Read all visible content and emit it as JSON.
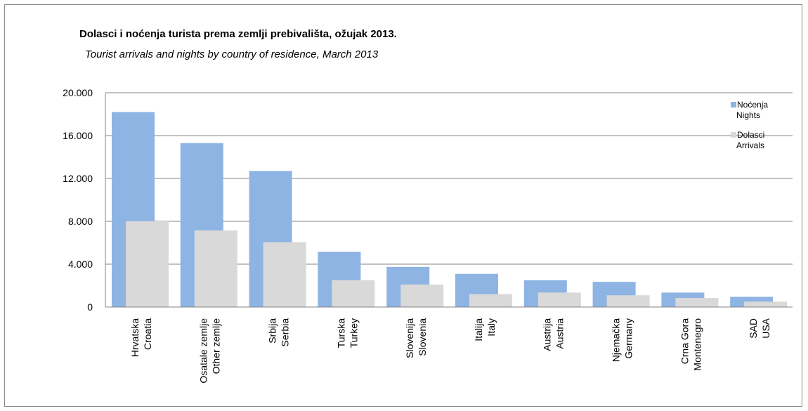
{
  "chart_data": {
    "type": "bar",
    "title": "Dolasci i noćenja turista prema zemlji prebivališta,  ožujak 2013.",
    "subtitle": "Tourist arrivals and nights by country of residence,  March 2013",
    "categories": [
      [
        "Hrvatska",
        "Croatia"
      ],
      [
        "Osatale zemlje",
        "Other zemlje"
      ],
      [
        "Srbija",
        "Serbia"
      ],
      [
        "Turska",
        "Turkey"
      ],
      [
        "Slovenija",
        "Slovenia"
      ],
      [
        "Italija",
        "Italy"
      ],
      [
        "Austrija",
        "Austria"
      ],
      [
        "Njemačka",
        "Germany"
      ],
      [
        "Crna Gora",
        "Montenegro"
      ],
      [
        "SAD",
        "USA"
      ]
    ],
    "series": [
      {
        "name": [
          "Noćenja",
          "Nights"
        ],
        "color": "#8eb4e3",
        "values": [
          18200,
          15300,
          12700,
          5150,
          3750,
          3100,
          2500,
          2350,
          1350,
          950
        ]
      },
      {
        "name": [
          "Dolasci",
          "Arrivals"
        ],
        "color": "#d9d9d9",
        "values": [
          8000,
          7150,
          6050,
          2500,
          2100,
          1200,
          1350,
          1100,
          850,
          500
        ]
      }
    ],
    "ylim": [
      0,
      20000
    ],
    "yticks": [
      "0",
      "4.000",
      "8.000",
      "12.000",
      "16.000",
      "20.000"
    ],
    "ytick_values": [
      0,
      4000,
      8000,
      12000,
      16000,
      20000
    ],
    "grid": true,
    "legend_position": "top-right"
  }
}
